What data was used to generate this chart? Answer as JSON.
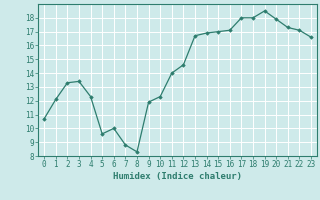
{
  "xlabel": "Humidex (Indice chaleur)",
  "ylabel": "",
  "x_values": [
    0,
    1,
    2,
    3,
    4,
    5,
    6,
    7,
    8,
    9,
    10,
    11,
    12,
    13,
    14,
    15,
    16,
    17,
    18,
    19,
    20,
    21,
    22,
    23
  ],
  "y_values": [
    10.7,
    12.1,
    13.3,
    13.4,
    12.3,
    9.6,
    10.0,
    8.8,
    8.3,
    11.9,
    12.3,
    14.0,
    14.6,
    16.7,
    16.9,
    17.0,
    17.1,
    18.0,
    18.0,
    18.5,
    17.9,
    17.3,
    17.1,
    16.6
  ],
  "ylim": [
    8,
    19
  ],
  "xlim": [
    -0.5,
    23.5
  ],
  "yticks": [
    8,
    9,
    10,
    11,
    12,
    13,
    14,
    15,
    16,
    17,
    18
  ],
  "xticks": [
    0,
    1,
    2,
    3,
    4,
    5,
    6,
    7,
    8,
    9,
    10,
    11,
    12,
    13,
    14,
    15,
    16,
    17,
    18,
    19,
    20,
    21,
    22,
    23
  ],
  "line_color": "#2e7d6e",
  "marker": "D",
  "marker_size": 1.8,
  "bg_color": "#ceeaea",
  "grid_color": "#ffffff",
  "tick_label_fontsize": 5.5,
  "xlabel_fontsize": 6.5,
  "line_width": 0.9
}
